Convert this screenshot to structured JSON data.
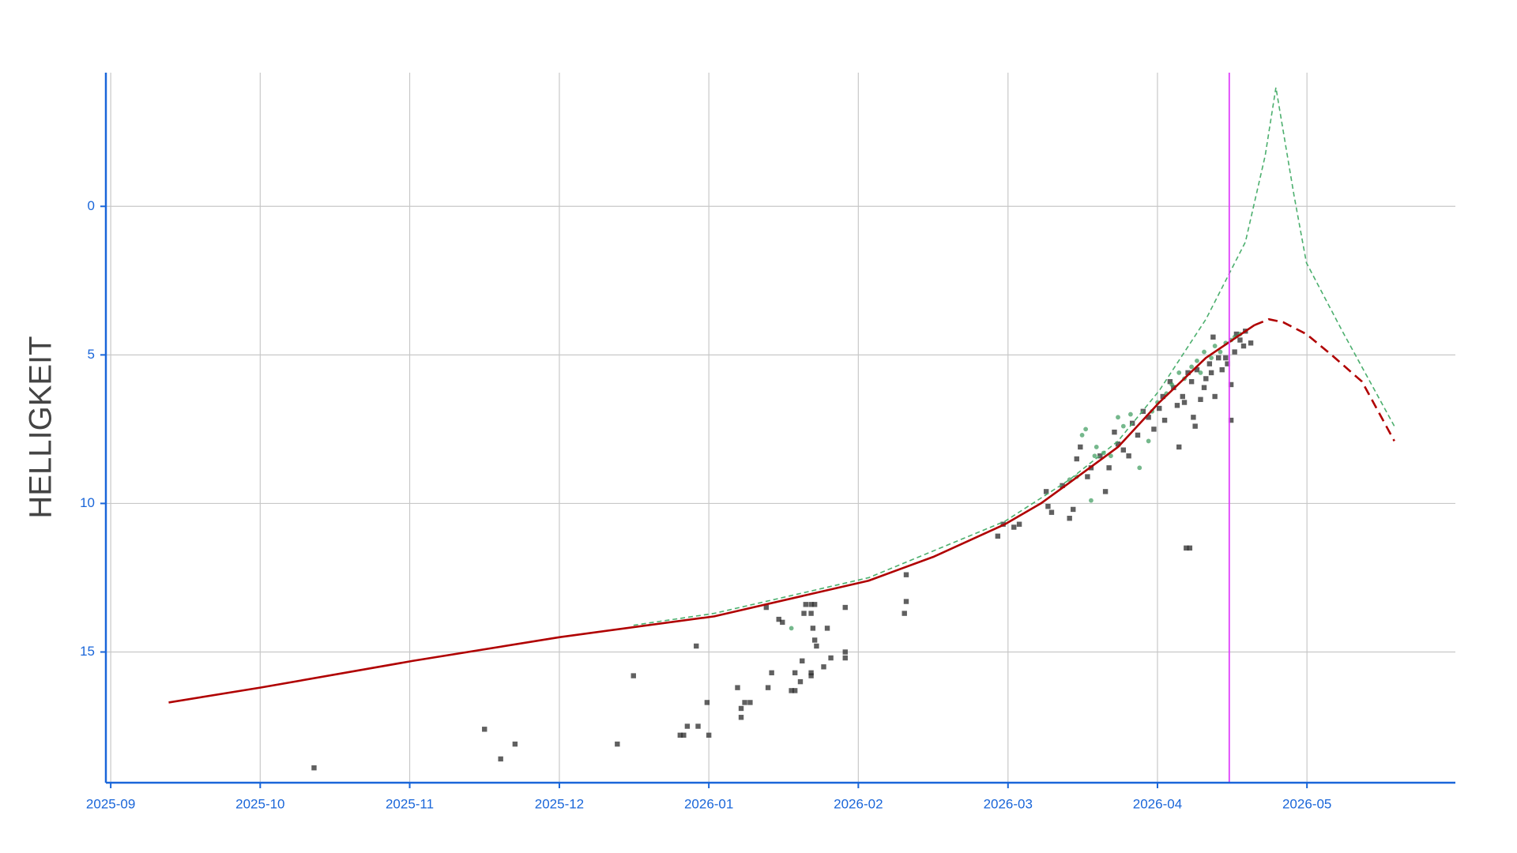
{
  "chart_data": {
    "type": "scatter",
    "y_axis_label": "HELLIGKEIT",
    "xlim": [
      2025.664,
      2026.416
    ],
    "ylim": [
      -4.5,
      19.4
    ],
    "y_inverted": true,
    "grid": true,
    "axis_color": "#1a66d9",
    "xticks": [
      {
        "value": 2025.6667,
        "label": "2025-09"
      },
      {
        "value": 2025.75,
        "label": "2025-10"
      },
      {
        "value": 2025.8333,
        "label": "2025-11"
      },
      {
        "value": 2025.9167,
        "label": "2025-12"
      },
      {
        "value": 2026.0,
        "label": "2026-01"
      },
      {
        "value": 2026.0833,
        "label": "2026-02"
      },
      {
        "value": 2026.1667,
        "label": "2026-03"
      },
      {
        "value": 2026.25,
        "label": "2026-04"
      },
      {
        "value": 2026.3333,
        "label": "2026-05"
      }
    ],
    "yticks": [
      0,
      5,
      10,
      15
    ],
    "series": [
      {
        "kind": "markers",
        "marker": "square",
        "color": "#2b2b2b",
        "x": [
          2025.78,
          2025.875,
          2025.884,
          2025.892,
          2025.949,
          2025.958,
          2025.984,
          2025.986,
          2025.988,
          2025.994,
          2025.993,
          2025.999,
          2026.0,
          2026.016,
          2026.018,
          2026.018,
          2026.02,
          2026.023,
          2026.032,
          2026.033,
          2026.035,
          2026.039,
          2026.041,
          2026.046,
          2026.048,
          2026.048,
          2026.051,
          2026.052,
          2026.053,
          2026.054,
          2026.057,
          2026.059,
          2026.057,
          2026.058,
          2026.059,
          2026.06,
          2026.057,
          2026.057,
          2026.064,
          2026.066,
          2026.068,
          2026.076,
          2026.076,
          2026.076,
          2026.109,
          2026.11,
          2026.11,
          2026.161,
          2026.164,
          2026.17,
          2026.173,
          2026.188,
          2026.189,
          2026.191,
          2026.197,
          2026.201,
          2026.203,
          2026.205,
          2026.207,
          2026.211,
          2026.213,
          2026.218,
          2026.221,
          2026.223,
          2026.226,
          2026.228,
          2026.231,
          2026.234,
          2026.236,
          2026.239,
          2026.242,
          2026.245,
          2026.248,
          2026.251,
          2026.253,
          2026.254,
          2026.257,
          2026.259,
          2026.261,
          2026.262,
          2026.264,
          2026.265,
          2026.266,
          2026.268,
          2026.267,
          2026.269,
          2026.27,
          2026.271,
          2026.272,
          2026.274,
          2026.276,
          2026.277,
          2026.279,
          2026.28,
          2026.281,
          2026.282,
          2026.284,
          2026.286,
          2026.288,
          2026.289,
          2026.291,
          2026.291,
          2026.293,
          2026.294,
          2026.296,
          2026.298,
          2026.299,
          2026.302
        ],
        "values": [
          18.9,
          17.6,
          18.6,
          18.1,
          18.1,
          15.8,
          17.8,
          17.8,
          17.5,
          17.5,
          14.8,
          16.7,
          17.8,
          16.2,
          16.9,
          17.2,
          16.7,
          16.7,
          13.5,
          16.2,
          15.7,
          13.9,
          14.0,
          16.3,
          15.7,
          16.3,
          16.0,
          15.3,
          13.7,
          13.4,
          13.4,
          13.4,
          13.7,
          14.2,
          14.6,
          14.8,
          15.7,
          15.8,
          15.5,
          14.2,
          15.2,
          13.5,
          15.0,
          15.2,
          13.7,
          13.3,
          12.4,
          11.1,
          10.7,
          10.8,
          10.7,
          9.6,
          10.1,
          10.3,
          9.4,
          10.5,
          10.2,
          8.5,
          8.1,
          9.1,
          8.8,
          8.4,
          9.6,
          8.8,
          7.6,
          8.0,
          8.2,
          8.4,
          7.3,
          7.7,
          6.9,
          7.1,
          7.5,
          6.8,
          6.4,
          7.2,
          5.9,
          6.1,
          6.7,
          8.1,
          6.4,
          6.6,
          11.5,
          11.5,
          5.6,
          5.9,
          7.1,
          7.4,
          5.5,
          6.5,
          6.1,
          5.8,
          5.3,
          5.6,
          4.4,
          6.4,
          5.1,
          5.5,
          5.1,
          5.3,
          7.2,
          6.0,
          4.9,
          4.3,
          4.5,
          4.7,
          4.2,
          4.6
        ]
      },
      {
        "kind": "markers",
        "marker": "circle",
        "color": "#3a9a5b",
        "x": [
          2026.046,
          2026.201,
          2026.205,
          2026.208,
          2026.21,
          2026.213,
          2026.215,
          2026.216,
          2026.22,
          2026.224,
          2026.228,
          2026.231,
          2026.235,
          2026.24,
          2026.245,
          2026.247,
          2026.25,
          2026.255,
          2026.258,
          2026.262,
          2026.265,
          2026.269,
          2026.272,
          2026.274,
          2026.276,
          2026.28,
          2026.282,
          2026.285,
          2026.288,
          2026.291,
          2026.293,
          2026.296
        ],
        "values": [
          14.2,
          9.2,
          9.1,
          7.7,
          7.5,
          9.9,
          8.4,
          8.1,
          8.3,
          8.4,
          7.1,
          7.4,
          7.0,
          8.8,
          7.9,
          6.9,
          6.6,
          6.3,
          6.0,
          5.6,
          5.8,
          5.4,
          5.2,
          5.6,
          4.9,
          5.1,
          4.7,
          4.9,
          4.6,
          4.5,
          4.4,
          4.3
        ]
      },
      {
        "kind": "line",
        "dash": true,
        "width": 1.6,
        "color": "#4caf6e",
        "x": [
          2025.958,
          2026.003,
          2026.089,
          2026.165,
          2026.201,
          2026.228,
          2026.251,
          2026.277,
          2026.299,
          2026.31,
          2026.316,
          2026.326,
          2026.333,
          2026.353,
          2026.382
        ],
        "values": [
          14.1,
          13.7,
          12.5,
          10.6,
          9.2,
          7.9,
          6.2,
          3.8,
          1.2,
          -1.7,
          -4.0,
          -0.4,
          1.9,
          4.2,
          7.4
        ]
      },
      {
        "kind": "line",
        "dash": false,
        "width": 2.6,
        "color": "#b00000",
        "x": [
          2025.699,
          2025.75,
          2025.835,
          2025.917,
          2026.003,
          2026.089,
          2026.125,
          2026.165,
          2026.185,
          2026.201,
          2026.228,
          2026.251,
          2026.277,
          2026.304
        ],
        "values": [
          16.7,
          16.2,
          15.3,
          14.5,
          13.8,
          12.6,
          11.8,
          10.7,
          10.0,
          9.3,
          8.1,
          6.6,
          5.1,
          4.0
        ]
      },
      {
        "kind": "line",
        "dash": true,
        "width": 2.6,
        "color": "#b00000",
        "x": [
          2026.304,
          2026.312,
          2026.32,
          2026.333,
          2026.347,
          2026.364,
          2026.382
        ],
        "values": [
          4.0,
          3.8,
          3.9,
          4.3,
          5.0,
          5.9,
          7.9
        ]
      }
    ],
    "vline": {
      "x": 2026.29,
      "color": "#e040fb"
    }
  }
}
